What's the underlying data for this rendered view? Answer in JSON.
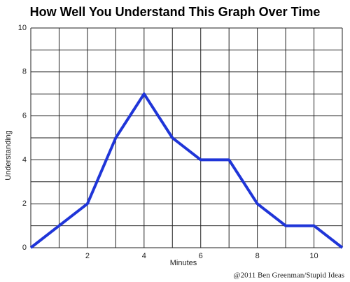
{
  "chart_data": {
    "type": "line",
    "title": "How Well You Understand This Graph Over Time",
    "x_label": "Minutes",
    "y_label": "Understanding",
    "credit": "@2011 Ben Greenman/Stupid Ideas",
    "x": [
      0,
      1,
      2,
      3,
      4,
      5,
      6,
      7,
      8,
      9,
      10,
      11
    ],
    "series": [
      {
        "name": "Understanding",
        "color": "#1f35d8",
        "values": [
          0,
          1,
          2,
          5,
          7,
          5,
          4,
          4,
          2,
          1,
          1,
          0
        ]
      }
    ],
    "xlim": [
      0,
      11
    ],
    "ylim": [
      0,
      10
    ],
    "xticks": [
      2,
      4,
      6,
      8,
      10
    ],
    "yticks": [
      0,
      2,
      4,
      6,
      8,
      10
    ],
    "minor_xticks": [
      0,
      1,
      3,
      5,
      7,
      9,
      11
    ],
    "minor_yticks": [
      1,
      3,
      5,
      7,
      9
    ],
    "grid": true
  }
}
